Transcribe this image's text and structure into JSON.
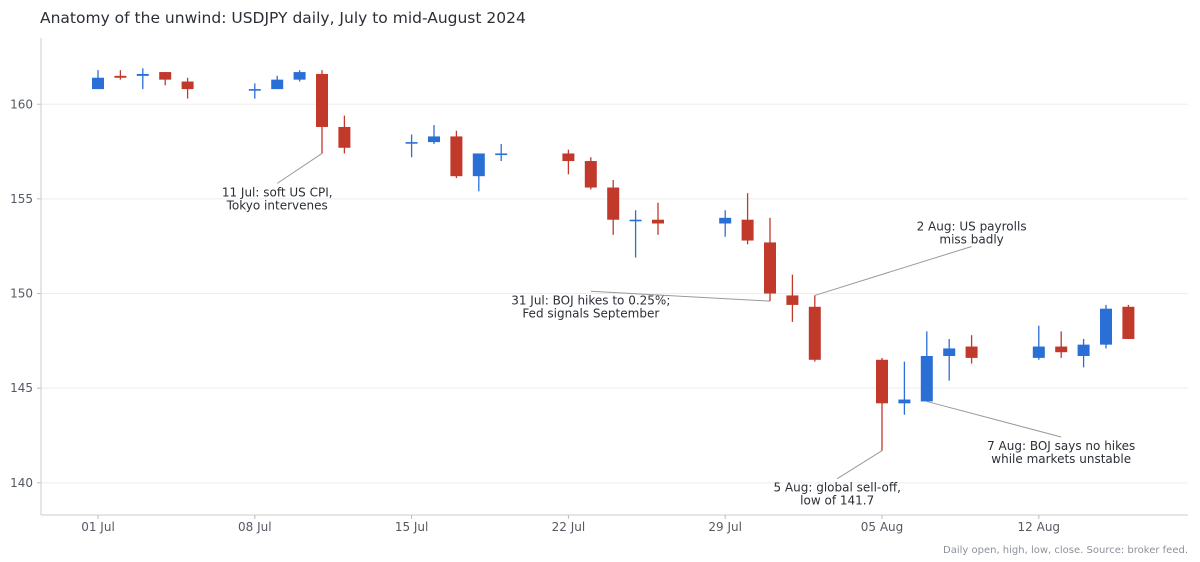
{
  "chart_data": {
    "type": "candlestick",
    "title": "Anatomy of the unwind: USDJPY daily, July to mid-August 2024",
    "xlabel": "",
    "ylabel": "",
    "ylim": [
      138.3,
      163.5
    ],
    "grid": "horizontal",
    "up_color": "#2a6fd6",
    "down_color": "#c0392b",
    "x_ticks": [
      {
        "date": "2024-07-01",
        "label": "01 Jul"
      },
      {
        "date": "2024-07-08",
        "label": "08 Jul"
      },
      {
        "date": "2024-07-15",
        "label": "15 Jul"
      },
      {
        "date": "2024-07-22",
        "label": "22 Jul"
      },
      {
        "date": "2024-07-29",
        "label": "29 Jul"
      },
      {
        "date": "2024-08-05",
        "label": "05 Aug"
      },
      {
        "date": "2024-08-12",
        "label": "12 Aug"
      }
    ],
    "y_ticks": [
      140,
      145,
      150,
      155,
      160
    ],
    "candles": [
      {
        "date": "2024-07-01",
        "open": 160.8,
        "high": 161.8,
        "low": 160.8,
        "close": 161.4
      },
      {
        "date": "2024-07-02",
        "open": 161.5,
        "high": 161.8,
        "low": 161.3,
        "close": 161.4
      },
      {
        "date": "2024-07-03",
        "open": 161.5,
        "high": 161.9,
        "low": 160.8,
        "close": 161.6
      },
      {
        "date": "2024-07-04",
        "open": 161.7,
        "high": 161.7,
        "low": 161.0,
        "close": 161.3
      },
      {
        "date": "2024-07-05",
        "open": 161.2,
        "high": 161.4,
        "low": 160.3,
        "close": 160.8
      },
      {
        "date": "2024-07-08",
        "open": 160.8,
        "high": 161.1,
        "low": 160.3,
        "close": 160.8
      },
      {
        "date": "2024-07-09",
        "open": 160.8,
        "high": 161.5,
        "low": 160.8,
        "close": 161.3
      },
      {
        "date": "2024-07-10",
        "open": 161.3,
        "high": 161.8,
        "low": 161.2,
        "close": 161.7
      },
      {
        "date": "2024-07-11",
        "open": 161.6,
        "high": 161.8,
        "low": 157.4,
        "close": 158.8
      },
      {
        "date": "2024-07-12",
        "open": 158.8,
        "high": 159.4,
        "low": 157.4,
        "close": 157.7
      },
      {
        "date": "2024-07-15",
        "open": 158.0,
        "high": 158.4,
        "low": 157.2,
        "close": 158.0
      },
      {
        "date": "2024-07-16",
        "open": 158.0,
        "high": 158.9,
        "low": 157.9,
        "close": 158.3
      },
      {
        "date": "2024-07-17",
        "open": 158.3,
        "high": 158.6,
        "low": 156.1,
        "close": 156.2
      },
      {
        "date": "2024-07-18",
        "open": 156.2,
        "high": 157.4,
        "low": 155.4,
        "close": 157.4
      },
      {
        "date": "2024-07-19",
        "open": 157.4,
        "high": 157.9,
        "low": 157.0,
        "close": 157.4
      },
      {
        "date": "2024-07-22",
        "open": 157.4,
        "high": 157.6,
        "low": 156.3,
        "close": 157.0
      },
      {
        "date": "2024-07-23",
        "open": 157.0,
        "high": 157.2,
        "low": 155.5,
        "close": 155.6
      },
      {
        "date": "2024-07-24",
        "open": 155.6,
        "high": 156.0,
        "low": 153.1,
        "close": 153.9
      },
      {
        "date": "2024-07-25",
        "open": 153.9,
        "high": 154.4,
        "low": 151.9,
        "close": 153.9
      },
      {
        "date": "2024-07-26",
        "open": 153.9,
        "high": 154.8,
        "low": 153.1,
        "close": 153.7
      },
      {
        "date": "2024-07-29",
        "open": 153.7,
        "high": 154.4,
        "low": 153.0,
        "close": 154.0
      },
      {
        "date": "2024-07-30",
        "open": 153.9,
        "high": 155.3,
        "low": 152.6,
        "close": 152.8
      },
      {
        "date": "2024-07-31",
        "open": 152.7,
        "high": 154.0,
        "low": 149.6,
        "close": 150.0
      },
      {
        "date": "2024-08-01",
        "open": 149.9,
        "high": 151.0,
        "low": 148.5,
        "close": 149.4
      },
      {
        "date": "2024-08-02",
        "open": 149.3,
        "high": 149.9,
        "low": 146.4,
        "close": 146.5
      },
      {
        "date": "2024-08-05",
        "open": 146.5,
        "high": 146.6,
        "low": 141.7,
        "close": 144.2
      },
      {
        "date": "2024-08-06",
        "open": 144.2,
        "high": 146.4,
        "low": 143.6,
        "close": 144.4
      },
      {
        "date": "2024-08-07",
        "open": 144.3,
        "high": 148.0,
        "low": 144.3,
        "close": 146.7
      },
      {
        "date": "2024-08-08",
        "open": 146.7,
        "high": 147.6,
        "low": 145.4,
        "close": 147.1
      },
      {
        "date": "2024-08-09",
        "open": 147.2,
        "high": 147.8,
        "low": 146.3,
        "close": 146.6
      },
      {
        "date": "2024-08-12",
        "open": 146.6,
        "high": 148.3,
        "low": 146.5,
        "close": 147.2
      },
      {
        "date": "2024-08-13",
        "open": 147.2,
        "high": 148.0,
        "low": 146.6,
        "close": 146.9
      },
      {
        "date": "2024-08-14",
        "open": 146.7,
        "high": 147.6,
        "low": 146.1,
        "close": 147.3
      },
      {
        "date": "2024-08-15",
        "open": 147.3,
        "high": 149.4,
        "low": 147.1,
        "close": 149.2
      },
      {
        "date": "2024-08-16",
        "open": 149.3,
        "high": 149.4,
        "low": 147.6,
        "close": 147.6
      }
    ],
    "annotations": [
      {
        "date": "2024-07-11",
        "price": 157.4,
        "text_date": "2024-07-09",
        "text_price": 155.0,
        "lines": [
          "11 Jul: soft US CPI,",
          "Tokyo intervenes"
        ]
      },
      {
        "date": "2024-07-31",
        "price": 149.6,
        "text_date": "2024-07-23",
        "text_price": 149.3,
        "lines": [
          "31 Jul: BOJ hikes to 0.25%;",
          "Fed signals September"
        ]
      },
      {
        "date": "2024-08-02",
        "price": 149.9,
        "text_date": "2024-08-09",
        "text_price": 153.2,
        "lines": [
          "2 Aug: US payrolls",
          "miss badly"
        ]
      },
      {
        "date": "2024-08-05",
        "price": 141.7,
        "text_date": "2024-08-03",
        "text_price": 139.4,
        "lines": [
          "5 Aug: global sell-off,",
          "low of 141.7"
        ]
      },
      {
        "date": "2024-08-07",
        "price": 144.3,
        "text_date": "2024-08-13",
        "text_price": 141.6,
        "lines": [
          "7 Aug: BOJ says no hikes",
          "while markets unstable"
        ]
      }
    ],
    "source_note": "Daily open, high, low, close. Source: broker feed."
  }
}
